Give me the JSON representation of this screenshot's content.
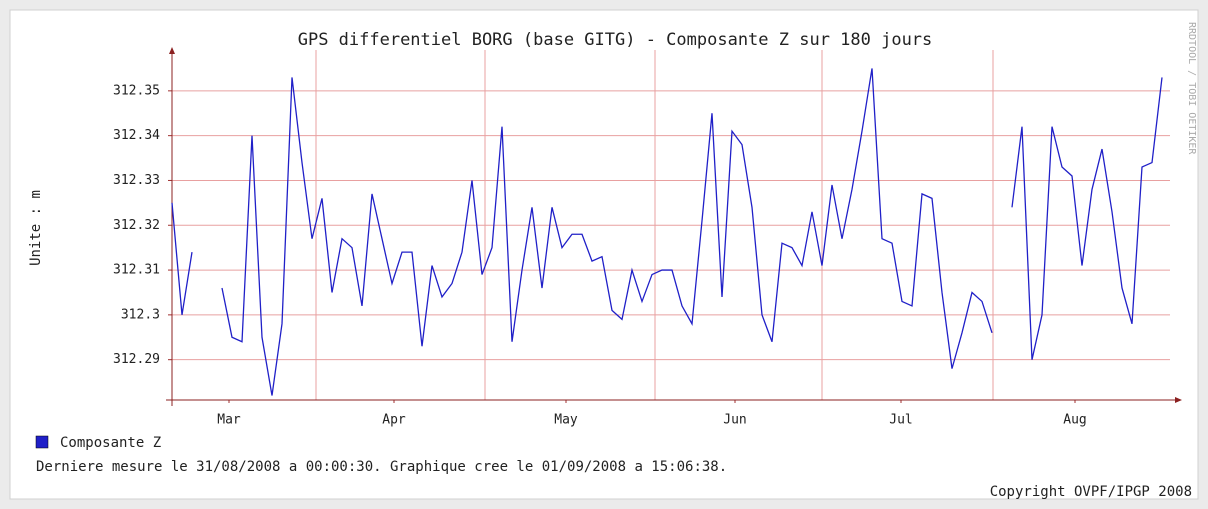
{
  "chart_data": {
    "type": "line",
    "title": "GPS differentiel BORG (base GITG) - Composante Z sur 180 jours",
    "y_label": "Unite : m",
    "watermark": "RRDTOOL / TOBI OETIKER",
    "footer": "Derniere mesure le 31/08/2008 a 00:00:30. Graphique cree le 01/09/2008 a 15:06:38.",
    "copyright": "Copyright OVPF/IPGP 2008",
    "xlim": [
      0,
      99
    ],
    "xticks": [
      {
        "value": 5.7,
        "label": "Mar"
      },
      {
        "value": 22.2,
        "label": "Apr"
      },
      {
        "value": 39.4,
        "label": "May"
      },
      {
        "value": 56.3,
        "label": "Jun"
      },
      {
        "value": 72.9,
        "label": "Jul"
      },
      {
        "value": 90.3,
        "label": "Aug"
      }
    ],
    "xgrid": [
      14.4,
      31.3,
      48.3,
      65,
      82.1
    ],
    "ylim": [
      312.281,
      312.358
    ],
    "yticks": [
      312.29,
      312.3,
      312.31,
      312.32,
      312.33,
      312.34,
      312.35
    ],
    "grid": true,
    "series": [
      {
        "name": "Composante Z",
        "color": "#2020c8",
        "values": [
          312.325,
          312.3,
          312.314,
          null,
          null,
          312.306,
          312.295,
          312.294,
          312.34,
          312.295,
          312.282,
          312.298,
          312.353,
          312.334,
          312.317,
          312.326,
          312.305,
          312.317,
          312.315,
          312.302,
          312.327,
          312.317,
          312.307,
          312.314,
          312.314,
          312.293,
          312.311,
          312.304,
          312.307,
          312.314,
          312.33,
          312.309,
          312.315,
          312.342,
          312.294,
          312.31,
          312.324,
          312.306,
          312.324,
          312.315,
          312.318,
          312.318,
          312.312,
          312.313,
          312.301,
          312.299,
          312.31,
          312.303,
          312.309,
          312.31,
          312.31,
          312.302,
          312.298,
          312.321,
          312.345,
          312.304,
          312.341,
          312.338,
          312.324,
          312.3,
          312.294,
          312.316,
          312.315,
          312.311,
          312.323,
          312.311,
          312.329,
          312.317,
          312.328,
          312.341,
          312.355,
          312.317,
          312.316,
          312.303,
          312.302,
          312.327,
          312.326,
          312.305,
          312.288,
          312.296,
          312.305,
          312.303,
          312.296,
          null,
          312.324,
          312.342,
          312.29,
          312.3,
          312.342,
          312.333,
          312.331,
          312.311,
          312.328,
          312.337,
          312.323,
          312.306,
          312.298,
          312.333,
          312.334,
          312.353
        ]
      }
    ]
  }
}
